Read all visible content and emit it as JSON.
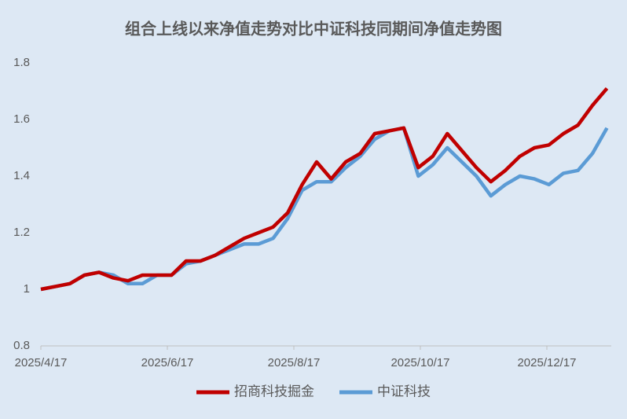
{
  "chart_data": {
    "type": "line",
    "title": "组合上线以来净值走势对比中证科技同期间净值走势图",
    "x": [
      "2025/4/17",
      "2025/4/24",
      "2025/5/1",
      "2025/5/8",
      "2025/5/15",
      "2025/5/22",
      "2025/5/29",
      "2025/6/5",
      "2025/6/12",
      "2025/6/19",
      "2025/6/26",
      "2025/7/3",
      "2025/7/10",
      "2025/7/17",
      "2025/7/24",
      "2025/7/31",
      "2025/8/7",
      "2025/8/14",
      "2025/8/21",
      "2025/8/28",
      "2025/9/4",
      "2025/9/11",
      "2025/9/18",
      "2025/9/25",
      "2025/10/2",
      "2025/10/9",
      "2025/10/16",
      "2025/10/23",
      "2025/10/30",
      "2025/11/6",
      "2025/11/13",
      "2025/11/20",
      "2025/11/27",
      "2025/12/4",
      "2025/12/11",
      "2025/12/18",
      "2025/12/25",
      "2026/1/1",
      "2026/1/8",
      "2026/1/15"
    ],
    "series": [
      {
        "name": "招商科技掘金",
        "color": "#c00000",
        "values": [
          1.0,
          1.01,
          1.02,
          1.05,
          1.06,
          1.04,
          1.03,
          1.05,
          1.05,
          1.05,
          1.1,
          1.1,
          1.12,
          1.15,
          1.18,
          1.2,
          1.22,
          1.27,
          1.37,
          1.45,
          1.39,
          1.45,
          1.48,
          1.55,
          1.56,
          1.57,
          1.43,
          1.47,
          1.55,
          1.49,
          1.43,
          1.38,
          1.42,
          1.47,
          1.5,
          1.51,
          1.55,
          1.58,
          1.65,
          1.71
        ]
      },
      {
        "name": "中证科技",
        "color": "#5b9bd5",
        "values": [
          1.0,
          1.01,
          1.02,
          1.05,
          1.06,
          1.05,
          1.02,
          1.02,
          1.05,
          1.05,
          1.09,
          1.1,
          1.12,
          1.14,
          1.16,
          1.16,
          1.18,
          1.25,
          1.35,
          1.38,
          1.38,
          1.43,
          1.47,
          1.53,
          1.56,
          1.57,
          1.4,
          1.44,
          1.5,
          1.45,
          1.4,
          1.33,
          1.37,
          1.4,
          1.39,
          1.37,
          1.41,
          1.42,
          1.48,
          1.57
        ]
      }
    ],
    "ylim": [
      0.8,
      1.8
    ],
    "yticks": [
      0.8,
      1,
      1.2,
      1.4,
      1.6,
      1.8
    ],
    "xticks": [
      "2025/4/17",
      "2025/6/17",
      "2025/8/17",
      "2025/10/17",
      "2025/12/17"
    ],
    "legend": "bottom"
  }
}
